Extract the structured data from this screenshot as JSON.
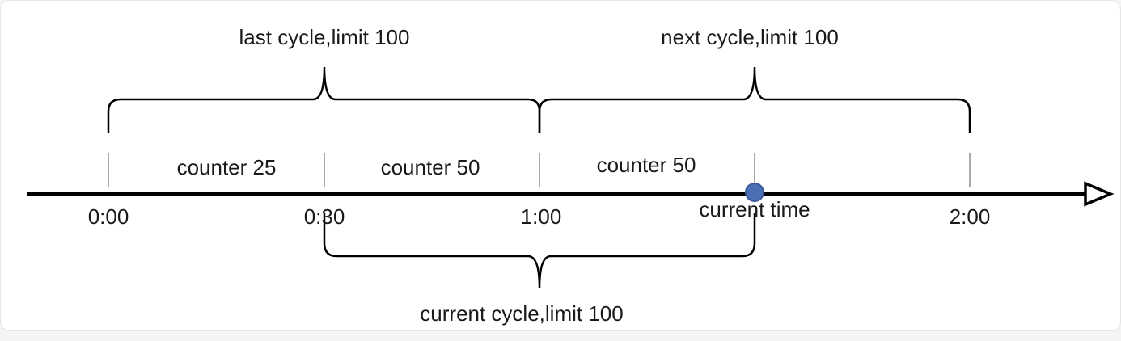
{
  "diagram": {
    "cycles": {
      "last": "last cycle,limit 100",
      "next": "next cycle,limit 100",
      "current": "current cycle,limit 100"
    },
    "counters": [
      "counter 25",
      "counter 50",
      "counter 50"
    ],
    "ticks": [
      "0:00",
      "0:30",
      "1:00",
      "2:00"
    ],
    "current_time_label": "current time",
    "colors": {
      "line": "#000000",
      "marker_fill": "#4a6fb5",
      "marker_stroke": "#3a5a9a",
      "tick": "#8c8c8c"
    }
  }
}
